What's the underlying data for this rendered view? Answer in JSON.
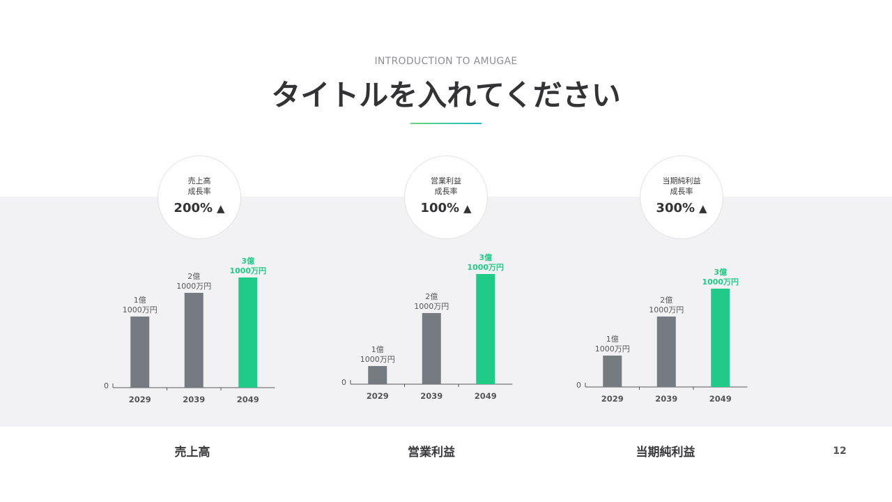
{
  "header": {
    "subtitle": "INTRODUCTION TO AMUGAE",
    "title": "タイトルを入れてください"
  },
  "colors": {
    "bar_gray": "#767b82",
    "bar_accent": "#20cb87",
    "accent_text": "#20cb87",
    "band_bg": "#f2f2f4"
  },
  "metrics": [
    {
      "label_line1": "売上高",
      "label_line2": "成長率",
      "rate": "200%",
      "arrow": "▲"
    },
    {
      "label_line1": "営業利益",
      "label_line2": "成長率",
      "rate": "100%",
      "arrow": "▲"
    },
    {
      "label_line1": "当期純利益",
      "label_line2": "成長率",
      "rate": "300%",
      "arrow": "▲"
    }
  ],
  "chart_data": [
    {
      "type": "bar",
      "categories": [
        "2029",
        "2039",
        "2049"
      ],
      "values": [
        1.1,
        2.1,
        3.1
      ],
      "value_labels": [
        [
          "1億",
          "1000万円"
        ],
        [
          "2億",
          "1000万円"
        ],
        [
          "3億",
          "1000万円"
        ]
      ],
      "zero_label": "0",
      "xlabel": "売上高",
      "highlight_index": 2
    },
    {
      "type": "bar",
      "categories": [
        "2029",
        "2039",
        "2049"
      ],
      "values": [
        1.1,
        2.1,
        3.1
      ],
      "value_labels": [
        [
          "1億",
          "1000万円"
        ],
        [
          "2億",
          "1000万円"
        ],
        [
          "3億",
          "1000万円"
        ]
      ],
      "zero_label": "0",
      "xlabel": "営業利益",
      "highlight_index": 2
    },
    {
      "type": "bar",
      "categories": [
        "2029",
        "2039",
        "2049"
      ],
      "values": [
        1.1,
        2.1,
        3.1
      ],
      "value_labels": [
        [
          "1億",
          "1000万円"
        ],
        [
          "2億",
          "1000万円"
        ],
        [
          "3億",
          "1000万円"
        ]
      ],
      "zero_label": "0",
      "xlabel": "当期純利益",
      "highlight_index": 2
    }
  ],
  "footer": {
    "page_number": "12"
  }
}
